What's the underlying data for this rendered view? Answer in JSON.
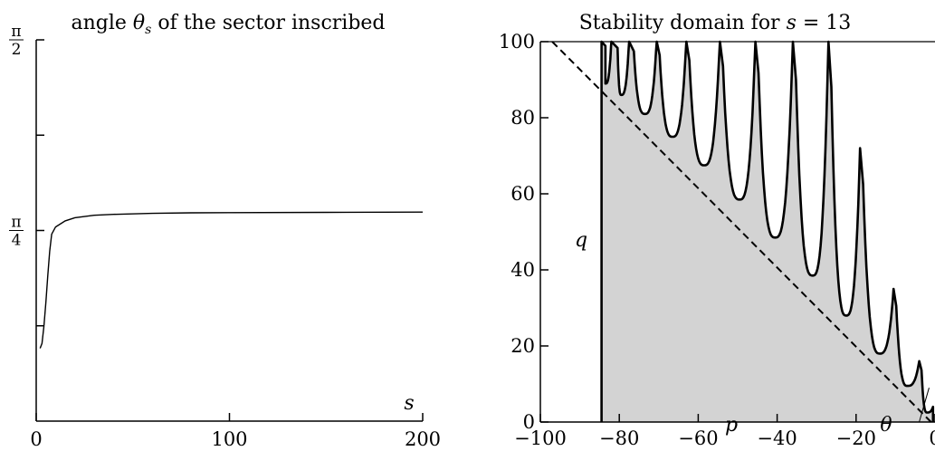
{
  "chart_data": [
    {
      "type": "line",
      "title": "angle θs of the sector inscribed",
      "xlabel": "s",
      "ylabel": "",
      "xlim": [
        0,
        200
      ],
      "ylim": [
        0,
        1.5708
      ],
      "x_ticks": [
        {
          "value": 0,
          "label": "0"
        },
        {
          "value": 100,
          "label": "100"
        },
        {
          "value": 200,
          "label": "200"
        }
      ],
      "y_ticks": [
        {
          "value": 0.3927,
          "label": ""
        },
        {
          "value": 0.7854,
          "label": "π/4"
        },
        {
          "value": 1.1781,
          "label": ""
        },
        {
          "value": 1.5708,
          "label": "π/2"
        }
      ],
      "y_tick_labels": {
        "pi_quarter_num": "π",
        "pi_quarter_den": "4",
        "pi_half_num": "π",
        "pi_half_den": "2"
      },
      "series": [
        {
          "x": [
            2,
            3,
            4,
            5,
            6,
            7,
            8,
            10,
            15,
            20,
            30,
            40,
            60,
            80,
            100,
            150,
            200
          ],
          "y": [
            0.3,
            0.32,
            0.39,
            0.49,
            0.6,
            0.7,
            0.77,
            0.8,
            0.825,
            0.838,
            0.848,
            0.852,
            0.856,
            0.858,
            0.859,
            0.86,
            0.861
          ]
        }
      ]
    },
    {
      "type": "area",
      "title": "Stability domain for s = 13",
      "title_prefix": "Stability domain for ",
      "title_var": "s",
      "title_eq": " = 13",
      "xlabel": "p",
      "ylabel": "q",
      "annotation": "θ",
      "xlim": [
        -100,
        0
      ],
      "ylim": [
        0,
        100
      ],
      "x_ticks": [
        {
          "value": -100,
          "label": "−100"
        },
        {
          "value": -80,
          "label": "−80"
        },
        {
          "value": -60,
          "label": "−60"
        },
        {
          "value": -40,
          "label": "−40"
        },
        {
          "value": -20,
          "label": "−20"
        },
        {
          "value": 0,
          "label": "0"
        }
      ],
      "y_ticks": [
        {
          "value": 0,
          "label": "0"
        },
        {
          "value": 20,
          "label": "20"
        },
        {
          "value": 40,
          "label": "40"
        },
        {
          "value": 60,
          "label": "60"
        },
        {
          "value": 80,
          "label": "80"
        },
        {
          "value": 100,
          "label": "100"
        }
      ],
      "boundary_left_p": -84.5,
      "boundary_right_p": -0.5,
      "dashed_line": {
        "from": [
          -97,
          100
        ],
        "to": [
          -1,
          0
        ]
      },
      "lobes": [
        {
          "p": -83.5,
          "min_q": 89,
          "left_p": -83.5,
          "right_p": -82.0,
          "clipped": true
        },
        {
          "p": -79.5,
          "min_q": 86,
          "left_p": -80.5,
          "right_p": -77.5,
          "clipped": true
        },
        {
          "p": -73.5,
          "min_q": 81,
          "left_p": -76.5,
          "right_p": -70.5,
          "clipped": true
        },
        {
          "p": -66.5,
          "min_q": 75,
          "left_p": -70.0,
          "right_p": -63.0,
          "clipped": true
        },
        {
          "p": -58.5,
          "min_q": 67.5,
          "left_p": -62.5,
          "right_p": -54.5,
          "clipped": true
        },
        {
          "p": -49.5,
          "min_q": 58.5,
          "left_p": -54.0,
          "right_p": -45.5,
          "clipped": true
        },
        {
          "p": -40.5,
          "min_q": 48.5,
          "left_p": -45.0,
          "right_p": -36.0,
          "clipped": true
        },
        {
          "p": -31.0,
          "min_q": 38.5,
          "left_p": -35.5,
          "right_p": -27.0,
          "clipped": true
        },
        {
          "p": -22.5,
          "min_q": 28.0,
          "left_p": -26.5,
          "right_p": -19.0,
          "clipped": false,
          "end_q": 72
        },
        {
          "p": -14.0,
          "min_q": 18.0,
          "left_p": -18.5,
          "right_p": -10.5,
          "clipped": false,
          "end_q": 35
        },
        {
          "p": -7.0,
          "min_q": 9.5,
          "left_p": -10.0,
          "right_p": -4.0,
          "clipped": false,
          "end_q": 16
        },
        {
          "p": -2.0,
          "min_q": 2.5,
          "left_p": -3.5,
          "right_p": -0.5,
          "clipped": false,
          "end_q": 4
        }
      ]
    }
  ]
}
